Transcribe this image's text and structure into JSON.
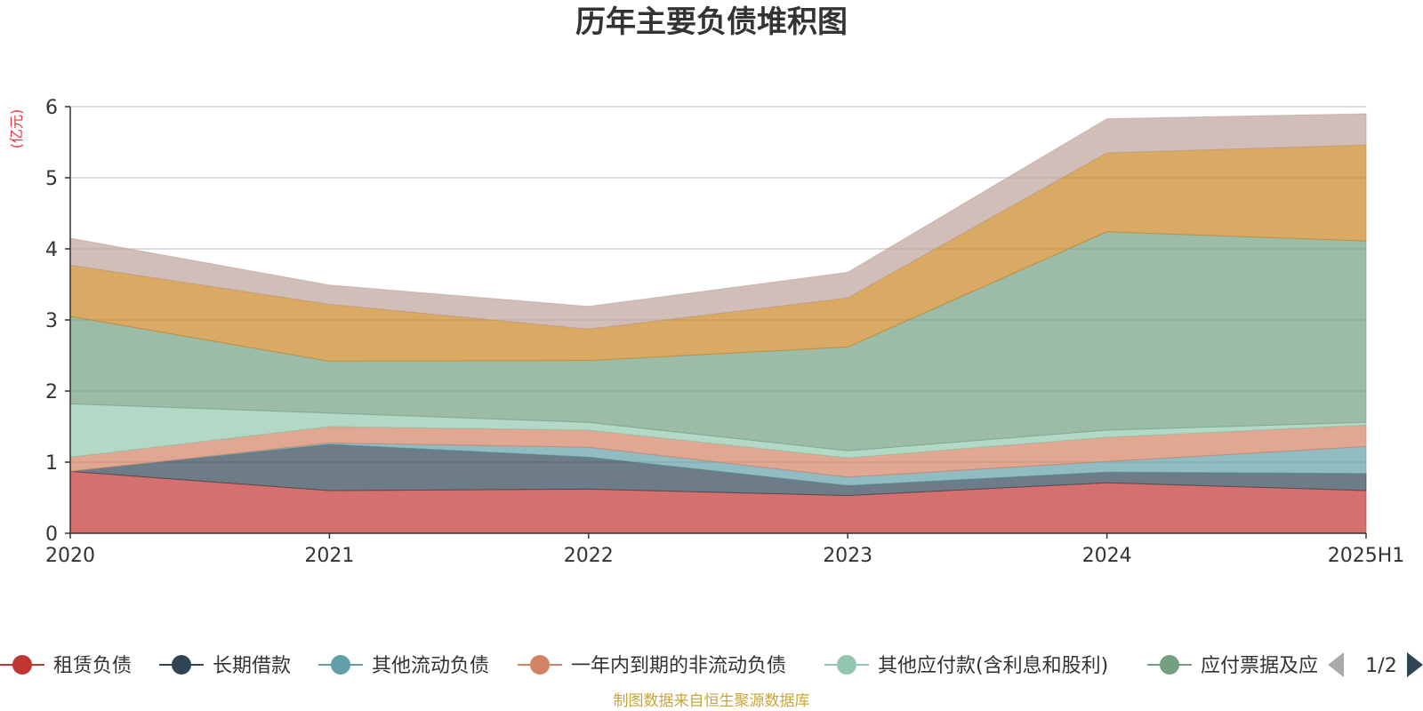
{
  "chart_data": {
    "type": "area",
    "stacked": true,
    "title": "历年主要负债堆积图",
    "ylabel": "(亿元)",
    "categories": [
      "2020",
      "2021",
      "2022",
      "2023",
      "2024",
      "2025H1"
    ],
    "ylim": [
      0,
      6
    ],
    "yticks": [
      "0",
      "1",
      "2",
      "3",
      "4",
      "5",
      "6"
    ],
    "grid": true,
    "series": [
      {
        "name": "租赁负债",
        "color": "#c23531",
        "values": [
          0.87,
          0.6,
          0.62,
          0.53,
          0.71,
          0.6
        ]
      },
      {
        "name": "长期借款",
        "color": "#2f4554",
        "values": [
          0.0,
          0.65,
          0.45,
          0.14,
          0.15,
          0.24
        ]
      },
      {
        "name": "其他流动负债",
        "color": "#61a0a8",
        "values": [
          0.0,
          0.02,
          0.14,
          0.12,
          0.15,
          0.38
        ]
      },
      {
        "name": "一年内到期的非流动负债",
        "color": "#d48265",
        "values": [
          0.2,
          0.23,
          0.24,
          0.27,
          0.34,
          0.3
        ]
      },
      {
        "name": "其他应付款(含利息和股利)",
        "color": "#91c7ae",
        "values": [
          0.75,
          0.19,
          0.11,
          0.1,
          0.1,
          0.04
        ]
      },
      {
        "name": "应付票据及应付账款",
        "color": "#749f83",
        "values": [
          1.23,
          0.73,
          0.87,
          1.46,
          2.79,
          2.55
        ]
      },
      {
        "name": "",
        "color": "#ca8622",
        "values": [
          0.72,
          0.8,
          0.44,
          0.69,
          1.11,
          1.35
        ]
      },
      {
        "name": "",
        "color": "#bda29a",
        "values": [
          0.38,
          0.27,
          0.32,
          0.36,
          0.48,
          0.44
        ]
      }
    ],
    "legend": {
      "placement": "bottom",
      "visible_labels": [
        "租赁负债",
        "长期借款",
        "其他流动负债",
        "一年内到期的非流动负债",
        "其他应付款(含利息和股利)",
        "应付票据及应"
      ],
      "page": "1/2"
    },
    "source": "制图数据来自恒生聚源数据库"
  },
  "colors": {
    "axis": "#333333",
    "grid": "#c8c8c8",
    "unit": "#e8333a",
    "source": "#c9a63c",
    "pager_inactive": "#aaaaaa",
    "pager_active": "#2f4554"
  },
  "icons": {
    "prev": "triangle-left-icon",
    "next": "triangle-right-icon"
  }
}
